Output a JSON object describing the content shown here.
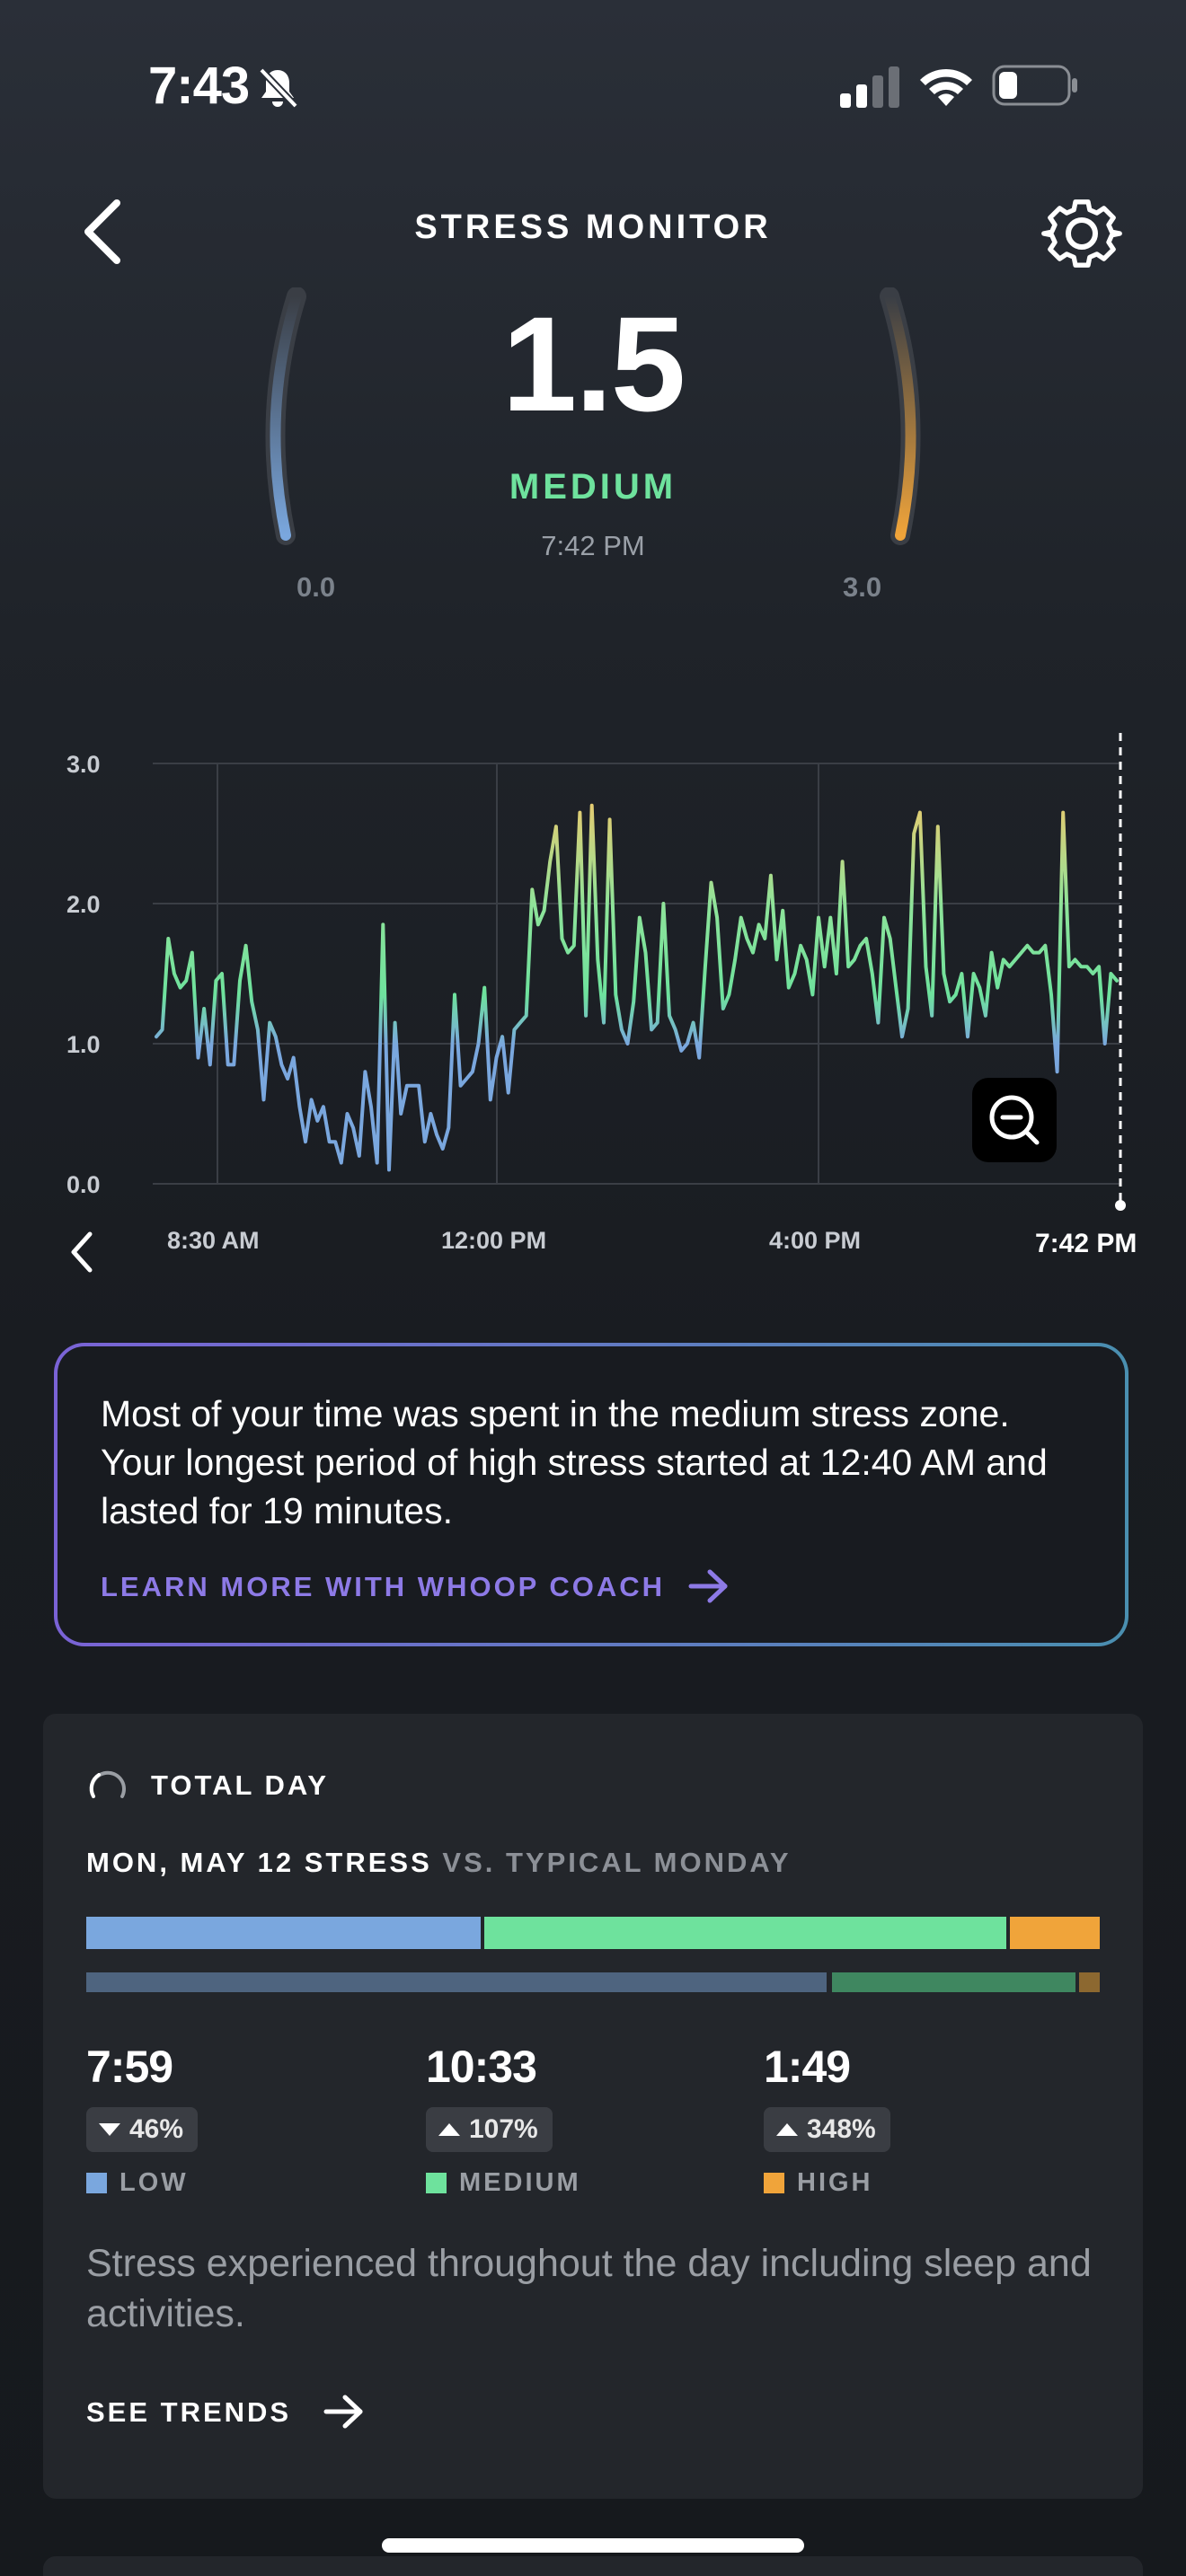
{
  "status_bar": {
    "time": "7:43"
  },
  "header": {
    "title": "STRESS MONITOR"
  },
  "gauge": {
    "score": "1.5",
    "level": "MEDIUM",
    "reading_time": "7:42 PM",
    "min_label": "0.0",
    "max_label": "3.0"
  },
  "chart_data": {
    "type": "line",
    "y_ticks": [
      "3.0",
      "2.0",
      "1.0",
      "0.0"
    ],
    "x_ticks": [
      "8:30 AM",
      "12:00 PM",
      "4:00 PM"
    ],
    "current_label": "7:42 PM",
    "ylim": [
      0,
      3
    ],
    "grid": true,
    "series": [
      {
        "values": [
          1.05,
          1.1,
          1.75,
          1.5,
          1.4,
          1.45,
          1.65,
          0.9,
          1.25,
          0.85,
          1.45,
          1.5,
          0.85,
          0.85,
          1.45,
          1.7,
          1.3,
          1.1,
          0.6,
          1.15,
          1.05,
          0.85,
          0.75,
          0.9,
          0.55,
          0.3,
          0.6,
          0.45,
          0.55,
          0.3,
          0.3,
          0.15,
          0.5,
          0.4,
          0.2,
          0.8,
          0.55,
          0.15,
          1.85,
          0.1,
          1.15,
          0.5,
          0.7,
          0.7,
          0.7,
          0.3,
          0.5,
          0.35,
          0.25,
          0.4,
          1.35,
          0.7,
          0.75,
          0.8,
          1.0,
          1.4,
          0.6,
          0.9,
          1.05,
          0.65,
          1.1,
          1.15,
          1.2,
          2.1,
          1.85,
          1.95,
          2.3,
          2.55,
          1.75,
          1.65,
          1.7,
          2.65,
          1.2,
          2.7,
          1.6,
          1.15,
          2.6,
          1.35,
          1.1,
          1.0,
          1.3,
          1.9,
          1.65,
          1.1,
          1.15,
          2.0,
          1.2,
          1.1,
          0.95,
          1.0,
          1.15,
          0.9,
          1.55,
          2.15,
          1.9,
          1.25,
          1.35,
          1.6,
          1.9,
          1.75,
          1.65,
          1.85,
          1.75,
          2.2,
          1.6,
          1.95,
          1.4,
          1.5,
          1.7,
          1.6,
          1.35,
          1.9,
          1.55,
          1.9,
          1.5,
          2.3,
          1.55,
          1.6,
          1.7,
          1.75,
          1.5,
          1.15,
          1.9,
          1.75,
          1.4,
          1.05,
          1.25,
          2.5,
          2.65,
          1.55,
          1.2,
          2.55,
          1.5,
          1.3,
          1.35,
          1.5,
          1.05,
          1.5,
          1.4,
          1.2,
          1.65,
          1.4,
          1.6,
          1.55,
          1.6,
          1.65,
          1.7,
          1.65,
          1.65,
          1.7,
          1.35,
          0.8,
          2.65,
          1.55,
          1.6,
          1.55,
          1.55,
          1.5,
          1.55,
          1.0,
          1.5,
          1.45
        ]
      }
    ]
  },
  "insight": {
    "text": "Most of your time was spent in the medium stress zone. Your longest period of high stress started at 12:40 AM and lasted for 19 minutes.",
    "link": "LEARN MORE WITH WHOOP COACH"
  },
  "total_day": {
    "title": "TOTAL DAY",
    "compare_bold": "MON, MAY 12 STRESS",
    "compare_muted": "VS. TYPICAL MONDAY",
    "today_split": [
      7.98,
      10.55,
      1.82
    ],
    "typical_split": [
      0.73,
      0.24,
      0.02
    ],
    "stats": [
      {
        "value": "7:59",
        "change": "46%",
        "direction": "down",
        "label": "LOW",
        "color": "#7aa7de"
      },
      {
        "value": "10:33",
        "change": "107%",
        "direction": "up",
        "label": "MEDIUM",
        "color": "#6ee29d"
      },
      {
        "value": "1:49",
        "change": "348%",
        "direction": "up",
        "label": "HIGH",
        "color": "#f0a43a"
      }
    ],
    "description": "Stress experienced throughout the day including sleep and activities.",
    "trends_label": "SEE TRENDS"
  },
  "colors": {
    "low": "#7aa7de",
    "medium": "#6ee29d",
    "high": "#f0a43a",
    "accent": "#8d7ae6"
  }
}
